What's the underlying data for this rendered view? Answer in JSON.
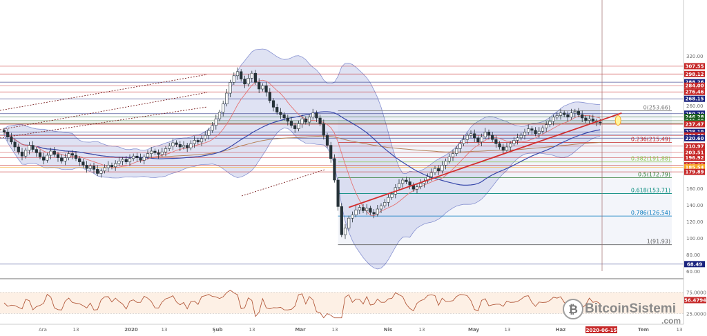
{
  "chart_data": {
    "type": "candlestick",
    "y_axis": {
      "ticks": [
        320,
        300,
        280,
        260,
        240,
        220,
        200,
        180,
        160,
        140,
        120,
        100,
        80,
        60
      ],
      "range": [
        55,
        330
      ]
    },
    "x_axis": {
      "ticks": [
        "Ara",
        "13",
        "2020",
        "13",
        "Şub",
        "13",
        "Mar",
        "13",
        "Nis",
        "13",
        "May",
        "13",
        "Haz",
        "13",
        "Tem",
        "13"
      ],
      "current_date": "2020-06-15"
    },
    "horizontal_levels": [
      {
        "label": "307.55",
        "value": 307.55,
        "color": "#c62828"
      },
      {
        "label": "298.12",
        "value": 298.12,
        "color": "#c62828"
      },
      {
        "label": "288.26",
        "value": 288.26,
        "color": "#1a237e"
      },
      {
        "label": "284.00",
        "value": 284.0,
        "color": "#c62828"
      },
      {
        "label": "276.46",
        "value": 276.46,
        "color": "#c62828"
      },
      {
        "label": "268.15",
        "value": 268.15,
        "color": "#1a237e"
      },
      {
        "label": "250.20",
        "value": 250.2,
        "color": "#1a237e"
      },
      {
        "label": "246.28",
        "value": 246.28,
        "color": "#1b5e20"
      },
      {
        "label": "241.69",
        "value": 241.69,
        "color": "#1b5e20"
      },
      {
        "label": "238.98",
        "value": 238.98,
        "color": "#2e7d32"
      },
      {
        "label": "237.72",
        "value": 237.72,
        "color": "#c62828"
      },
      {
        "label": "237.47",
        "value": 237.47,
        "color": "#c62828"
      },
      {
        "label": "228.19",
        "value": 228.19,
        "color": "#1a237e"
      },
      {
        "label": "224.74",
        "value": 224.74,
        "color": "#1a237e"
      },
      {
        "label": "223.89",
        "value": 223.89,
        "color": "#c62828"
      },
      {
        "label": "220.60",
        "value": 220.6,
        "color": "#1a237e"
      },
      {
        "label": "210.97",
        "value": 210.97,
        "color": "#c62828"
      },
      {
        "label": "203.51",
        "value": 203.51,
        "color": "#c62828"
      },
      {
        "label": "196.92",
        "value": 196.92,
        "color": "#c62828"
      },
      {
        "label": "187.82",
        "value": 187.82,
        "color": "#c62828"
      },
      {
        "label": "185.54",
        "value": 185.54,
        "color": "#f9a825"
      },
      {
        "label": "179.89",
        "value": 179.89,
        "color": "#c62828"
      },
      {
        "label": "68.49",
        "value": 68.49,
        "color": "#1a237e"
      }
    ],
    "fibonacci": [
      {
        "label": "0(253.66)",
        "value": 253.66,
        "color": "#757575"
      },
      {
        "label": "0.236(215.49)",
        "value": 215.49,
        "color": "#c62828"
      },
      {
        "label": "0.382(191.88)",
        "value": 191.88,
        "color": "#8bc34a"
      },
      {
        "label": "0.5(172.79)",
        "value": 172.79,
        "color": "#2e7d32"
      },
      {
        "label": "0.618(153.71)",
        "value": 153.71,
        "color": "#00897b"
      },
      {
        "label": "0.786(126.54)",
        "value": 126.54,
        "color": "#0277bd"
      },
      {
        "label": "1(91.93)",
        "value": 91.93,
        "color": "#616161"
      }
    ],
    "close_series": [
      228,
      222,
      216,
      210,
      204,
      199,
      206,
      212,
      207,
      203,
      198,
      194,
      200,
      205,
      201,
      197,
      193,
      197,
      202,
      200,
      196,
      192,
      188,
      184,
      187,
      183,
      178,
      181,
      185,
      188,
      186,
      190,
      193,
      195,
      192,
      196,
      199,
      197,
      194,
      198,
      202,
      205,
      203,
      201,
      204,
      208,
      211,
      215,
      213,
      210,
      212,
      209,
      214,
      218,
      216,
      220,
      224,
      230,
      236,
      244,
      252,
      262,
      275,
      288,
      296,
      301,
      292,
      286,
      293,
      299,
      288,
      280,
      284,
      276,
      266,
      258,
      252,
      249,
      245,
      241,
      236,
      232,
      238,
      244,
      240,
      246,
      251,
      245,
      238,
      224,
      212,
      196,
      170,
      138,
      104,
      112,
      124,
      128,
      134,
      137,
      133,
      136,
      131,
      129,
      135,
      139,
      143,
      149,
      153,
      161,
      166,
      170,
      168,
      164,
      159,
      162,
      166,
      169,
      174,
      179,
      184,
      181,
      188,
      193,
      198,
      202,
      208,
      214,
      219,
      224,
      226,
      221,
      216,
      222,
      228,
      224,
      219,
      214,
      210,
      206,
      210,
      214,
      218,
      221,
      224,
      228,
      232,
      230,
      226,
      229,
      233,
      237,
      241,
      246,
      248,
      251,
      249,
      246,
      251,
      253,
      249,
      245,
      242,
      244,
      241,
      240,
      239
    ],
    "rsi": {
      "value_label": "56.4794",
      "ticks": [
        75.0,
        25.0
      ],
      "tick_labels": [
        "75.0000",
        "25.0000"
      ]
    },
    "annotations": {
      "watermark": "BitcoinSistemi",
      "watermark_sub": ".com"
    }
  },
  "colors": {
    "up_candle": "#ffffff",
    "down_candle": "#263238",
    "bollinger_fill": "#c5cae9",
    "bollinger_line": "#5c6bc0",
    "ma_blue": "#3949ab",
    "ma_red": "#e57373",
    "ma_brown": "#b5835a",
    "trend_red": "#d32f2f",
    "rsi_line": "#b35a3c",
    "rsi_band": "#fbe6d4"
  }
}
